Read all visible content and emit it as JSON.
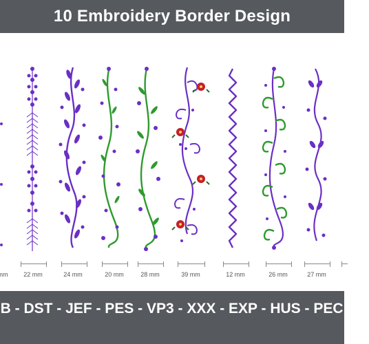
{
  "header": {
    "title": "10 Embroidery Border Design",
    "background": "#56595e"
  },
  "colors": {
    "purple": "#6a2fc4",
    "green": "#2e9a2e",
    "red": "#c61f2a",
    "measure": "#888888"
  },
  "sizes": [
    {
      "label": "mm"
    },
    {
      "label": "22 mm"
    },
    {
      "label": "24 mm"
    },
    {
      "label": "20 mm"
    },
    {
      "label": "28 mm"
    },
    {
      "label": "39 mm"
    },
    {
      "label": "12 mm"
    },
    {
      "label": "26 mm"
    },
    {
      "label": "27 mm"
    }
  ],
  "footer": {
    "formats": "B - DST - JEF - PES - VP3 - XXX - EXP - HUS - PEC -"
  }
}
